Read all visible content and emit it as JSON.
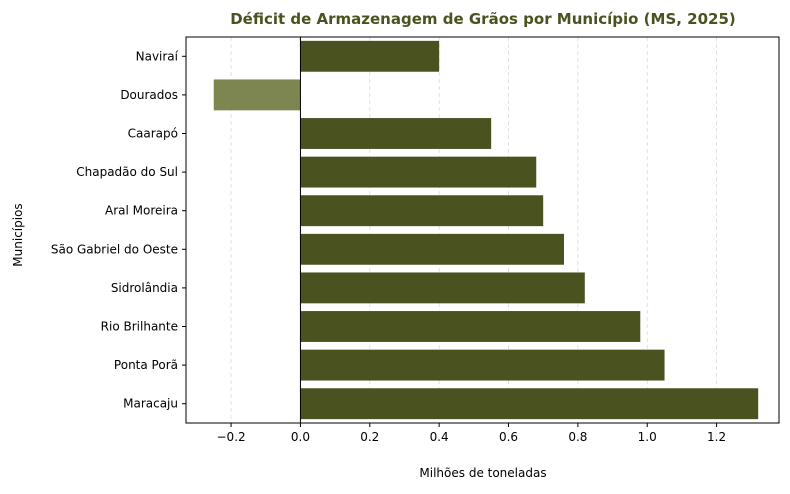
{
  "chart_data": {
    "type": "bar",
    "orientation": "horizontal",
    "title": "Déficit de Armazenagem de Grãos por Município (MS, 2025)",
    "xlabel": "Milhões de toneladas",
    "ylabel": "Municípios",
    "categories": [
      "Maracaju",
      "Ponta Porã",
      "Rio Brilhante",
      "Sidrolândia",
      "São Gabriel do Oeste",
      "Aral Moreira",
      "Chapadão do Sul",
      "Caarapó",
      "Dourados",
      "Naviraí"
    ],
    "values": [
      1.32,
      1.05,
      0.98,
      0.82,
      0.76,
      0.7,
      0.68,
      0.55,
      -0.25,
      0.4
    ],
    "xlim": [
      -0.33,
      1.38
    ],
    "xticks": [
      -0.2,
      0.0,
      0.2,
      0.4,
      0.6,
      0.8,
      1.0,
      1.2
    ],
    "xtick_labels": [
      "−0.2",
      "0.0",
      "0.2",
      "0.4",
      "0.6",
      "0.8",
      "1.0",
      "1.2"
    ],
    "grid": "x-dashed",
    "colors": {
      "positive": "#4a5320",
      "negative": "#7d8650",
      "title": "#4a5320",
      "zero_line": "#000000",
      "grid": "#d9d9d9"
    }
  }
}
